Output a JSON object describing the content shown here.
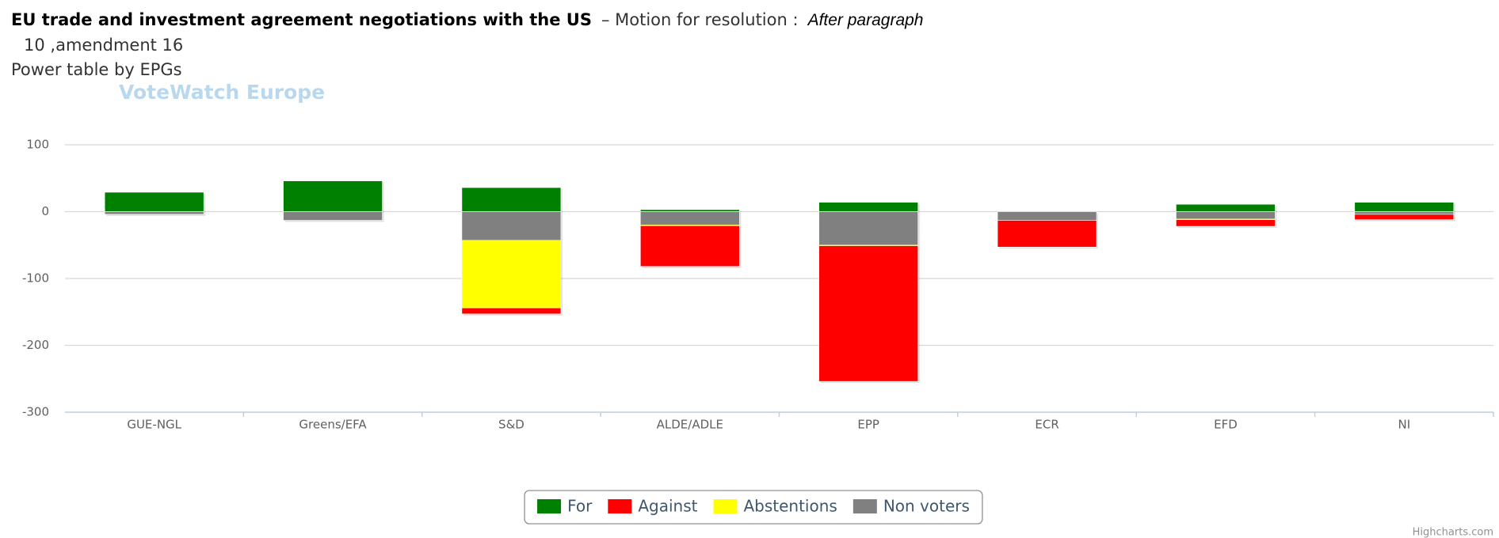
{
  "chart_data": {
    "type": "stacked_bar",
    "title": "EU trade and investment agreement negotiations with the US",
    "title_suffix": "– Motion for resolution :",
    "title_italic": "After paragraph",
    "title_line2": "10 ,amendment 16",
    "subtitle": "Power table by EPGs",
    "watermark": "VoteWatch Europe",
    "credits": "Highcharts.com",
    "categories": [
      "GUE-NGL",
      "Greens/EFA",
      "S&D",
      "ALDE/ADLE",
      "EPP",
      "ECR",
      "EFD",
      "NI"
    ],
    "series": [
      {
        "name": "For",
        "color": "#008000",
        "values": [
          29,
          46,
          36,
          3,
          14,
          0,
          11,
          14
        ]
      },
      {
        "name": "Against",
        "color": "#ff0000",
        "values": [
          0,
          0,
          -9,
          -61,
          -203,
          -40,
          -10,
          -8
        ]
      },
      {
        "name": "Abstentions",
        "color": "#ffff00",
        "values": [
          0,
          0,
          -101,
          -1,
          -1,
          0,
          -1,
          0
        ]
      },
      {
        "name": "Non voters",
        "color": "#808080",
        "values": [
          -4,
          -13,
          -43,
          -20,
          -50,
          -13,
          -11,
          -4
        ]
      }
    ],
    "ylim": [
      -300,
      100
    ],
    "yticks": [
      -300,
      -200,
      -100,
      0,
      100
    ],
    "grid": true
  }
}
